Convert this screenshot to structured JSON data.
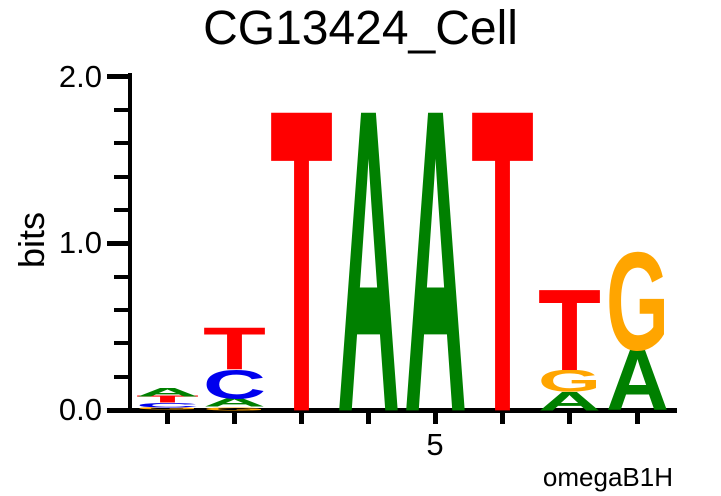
{
  "page": {
    "background": "#ffffff"
  },
  "chart_data": {
    "type": "sequence_logo",
    "title": "CG13424_Cell",
    "ylabel": "bits",
    "attribution": "omegaB1H",
    "y_axis": {
      "min": 0.0,
      "max": 2.0,
      "major_ticks": [
        {
          "label": "0.0",
          "value": 0.0
        },
        {
          "label": "1.0",
          "value": 1.0
        },
        {
          "label": "2.0",
          "value": 2.0
        }
      ],
      "minor_step": 0.2
    },
    "x_axis": {
      "tick_label": "5",
      "labeled_position": 5,
      "num_positions": 8
    },
    "colors": {
      "A": "#008000",
      "C": "#0000EE",
      "G": "#FFA500",
      "T": "#FF0000"
    },
    "positions": [
      {
        "position": 1,
        "letters_bottom_to_top": [
          {
            "base": "G",
            "bits": 0.015
          },
          {
            "base": "C",
            "bits": 0.027
          },
          {
            "base": "T",
            "bits": 0.04
          },
          {
            "base": "A",
            "bits": 0.05
          }
        ]
      },
      {
        "position": 2,
        "letters_bottom_to_top": [
          {
            "base": "G",
            "bits": 0.02
          },
          {
            "base": "A",
            "bits": 0.05
          },
          {
            "base": "C",
            "bits": 0.17
          },
          {
            "base": "T",
            "bits": 0.25
          }
        ]
      },
      {
        "position": 3,
        "letters_bottom_to_top": [
          {
            "base": "T",
            "bits": 1.79
          }
        ]
      },
      {
        "position": 4,
        "letters_bottom_to_top": [
          {
            "base": "A",
            "bits": 1.79
          }
        ]
      },
      {
        "position": 5,
        "letters_bottom_to_top": [
          {
            "base": "A",
            "bits": 1.79
          }
        ]
      },
      {
        "position": 6,
        "letters_bottom_to_top": [
          {
            "base": "T",
            "bits": 1.79
          }
        ]
      },
      {
        "position": 7,
        "letters_bottom_to_top": [
          {
            "base": "A",
            "bits": 0.11
          },
          {
            "base": "G",
            "bits": 0.13
          },
          {
            "base": "T",
            "bits": 0.48
          }
        ]
      },
      {
        "position": 8,
        "letters_bottom_to_top": [
          {
            "base": "A",
            "bits": 0.36
          },
          {
            "base": "G",
            "bits": 0.58
          }
        ]
      }
    ]
  }
}
